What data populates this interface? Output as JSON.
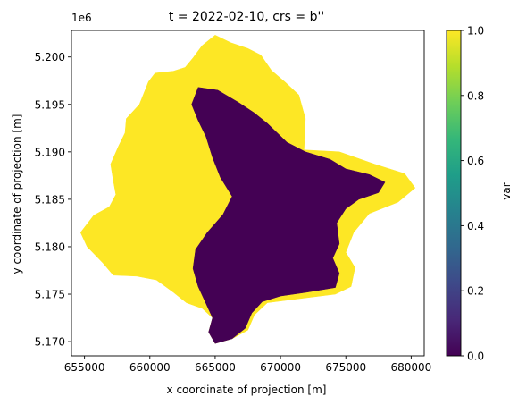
{
  "chart_data": {
    "type": "heatmap",
    "title": "t = 2022-02-10, crs = b''",
    "xlabel": "x coordinate of projection [m]",
    "ylabel": "y coordinate of projection [m]",
    "y_offset_label": "1e6",
    "xlim": [
      654000,
      681000
    ],
    "ylim": [
      5168500,
      5202800
    ],
    "x_ticks": [
      {
        "value": 655000,
        "label": "655000"
      },
      {
        "value": 660000,
        "label": "660000"
      },
      {
        "value": 665000,
        "label": "665000"
      },
      {
        "value": 670000,
        "label": "670000"
      },
      {
        "value": 675000,
        "label": "675000"
      },
      {
        "value": 680000,
        "label": "680000"
      }
    ],
    "y_ticks": [
      {
        "value": 5170000,
        "label": "5.170"
      },
      {
        "value": 5175000,
        "label": "5.175"
      },
      {
        "value": 5180000,
        "label": "5.180"
      },
      {
        "value": 5185000,
        "label": "5.185"
      },
      {
        "value": 5190000,
        "label": "5.190"
      },
      {
        "value": 5195000,
        "label": "5.195"
      },
      {
        "value": 5200000,
        "label": "5.200"
      }
    ],
    "colorbar": {
      "label": "var",
      "colormap": "viridis",
      "range": [
        0,
        1
      ],
      "ticks": [
        {
          "value": 0.0,
          "label": "0.0"
        },
        {
          "value": 0.2,
          "label": "0.2"
        },
        {
          "value": 0.4,
          "label": "0.4"
        },
        {
          "value": 0.6,
          "label": "0.6"
        },
        {
          "value": 0.8,
          "label": "0.8"
        },
        {
          "value": 1.0,
          "label": "1.0"
        }
      ],
      "stops": [
        "#440154",
        "#482878",
        "#3e4989",
        "#31688e",
        "#26828e",
        "#1f9e89",
        "#35b779",
        "#6ece58",
        "#b5de2b",
        "#fde725"
      ]
    },
    "regions": [
      {
        "value": 1.0,
        "color": "#fde725",
        "outline": [
          [
            665000,
            5202300
          ],
          [
            666200,
            5201500
          ],
          [
            667500,
            5200900
          ],
          [
            668500,
            5200200
          ],
          [
            669300,
            5198600
          ],
          [
            670400,
            5197300
          ],
          [
            671400,
            5196000
          ],
          [
            671900,
            5193500
          ],
          [
            671800,
            5190200
          ],
          [
            674500,
            5190000
          ],
          [
            677200,
            5188700
          ],
          [
            679500,
            5187700
          ],
          [
            680300,
            5186200
          ],
          [
            679000,
            5184700
          ],
          [
            676800,
            5183500
          ],
          [
            675600,
            5181500
          ],
          [
            675000,
            5179400
          ],
          [
            675700,
            5177800
          ],
          [
            675400,
            5175800
          ],
          [
            674200,
            5175000
          ],
          [
            671300,
            5174500
          ],
          [
            669000,
            5174100
          ],
          [
            668000,
            5172800
          ],
          [
            667500,
            5171200
          ],
          [
            666300,
            5170300
          ],
          [
            665000,
            5169800
          ],
          [
            664500,
            5171000
          ],
          [
            664800,
            5172500
          ],
          [
            664000,
            5173500
          ],
          [
            662800,
            5174100
          ],
          [
            661800,
            5175200
          ],
          [
            660500,
            5176500
          ],
          [
            659000,
            5176900
          ],
          [
            657200,
            5177000
          ],
          [
            656400,
            5178300
          ],
          [
            655200,
            5180000
          ],
          [
            654700,
            5181500
          ],
          [
            655700,
            5183300
          ],
          [
            656900,
            5184200
          ],
          [
            657400,
            5185500
          ],
          [
            657200,
            5187000
          ],
          [
            657000,
            5188700
          ],
          [
            657600,
            5190600
          ],
          [
            658100,
            5192000
          ],
          [
            658200,
            5193500
          ],
          [
            659200,
            5195000
          ],
          [
            659900,
            5197400
          ],
          [
            660400,
            5198300
          ],
          [
            661800,
            5198500
          ],
          [
            662700,
            5198900
          ],
          [
            663300,
            5199900
          ],
          [
            664000,
            5201200
          ]
        ]
      },
      {
        "value": 0.0,
        "color": "#440154",
        "outline": [
          [
            663700,
            5196800
          ],
          [
            665200,
            5196500
          ],
          [
            666800,
            5195200
          ],
          [
            668000,
            5194100
          ],
          [
            669000,
            5193000
          ],
          [
            670500,
            5191000
          ],
          [
            671900,
            5190000
          ],
          [
            673800,
            5189200
          ],
          [
            675000,
            5188200
          ],
          [
            676800,
            5187600
          ],
          [
            678000,
            5186800
          ],
          [
            677500,
            5185700
          ],
          [
            676000,
            5185000
          ],
          [
            675000,
            5184000
          ],
          [
            674300,
            5182500
          ],
          [
            674500,
            5180300
          ],
          [
            674000,
            5178800
          ],
          [
            674500,
            5177200
          ],
          [
            674200,
            5175700
          ],
          [
            672000,
            5175200
          ],
          [
            670000,
            5174800
          ],
          [
            668600,
            5174200
          ],
          [
            667800,
            5173000
          ],
          [
            667300,
            5171400
          ],
          [
            666300,
            5170300
          ],
          [
            665000,
            5169800
          ],
          [
            664500,
            5171000
          ],
          [
            664800,
            5172500
          ],
          [
            664300,
            5174000
          ],
          [
            663700,
            5175800
          ],
          [
            663300,
            5177700
          ],
          [
            663500,
            5179700
          ],
          [
            664400,
            5181500
          ],
          [
            665600,
            5183400
          ],
          [
            666300,
            5185300
          ],
          [
            665400,
            5187300
          ],
          [
            664800,
            5189400
          ],
          [
            664300,
            5191600
          ],
          [
            663700,
            5193300
          ],
          [
            663200,
            5195000
          ]
        ]
      }
    ]
  }
}
